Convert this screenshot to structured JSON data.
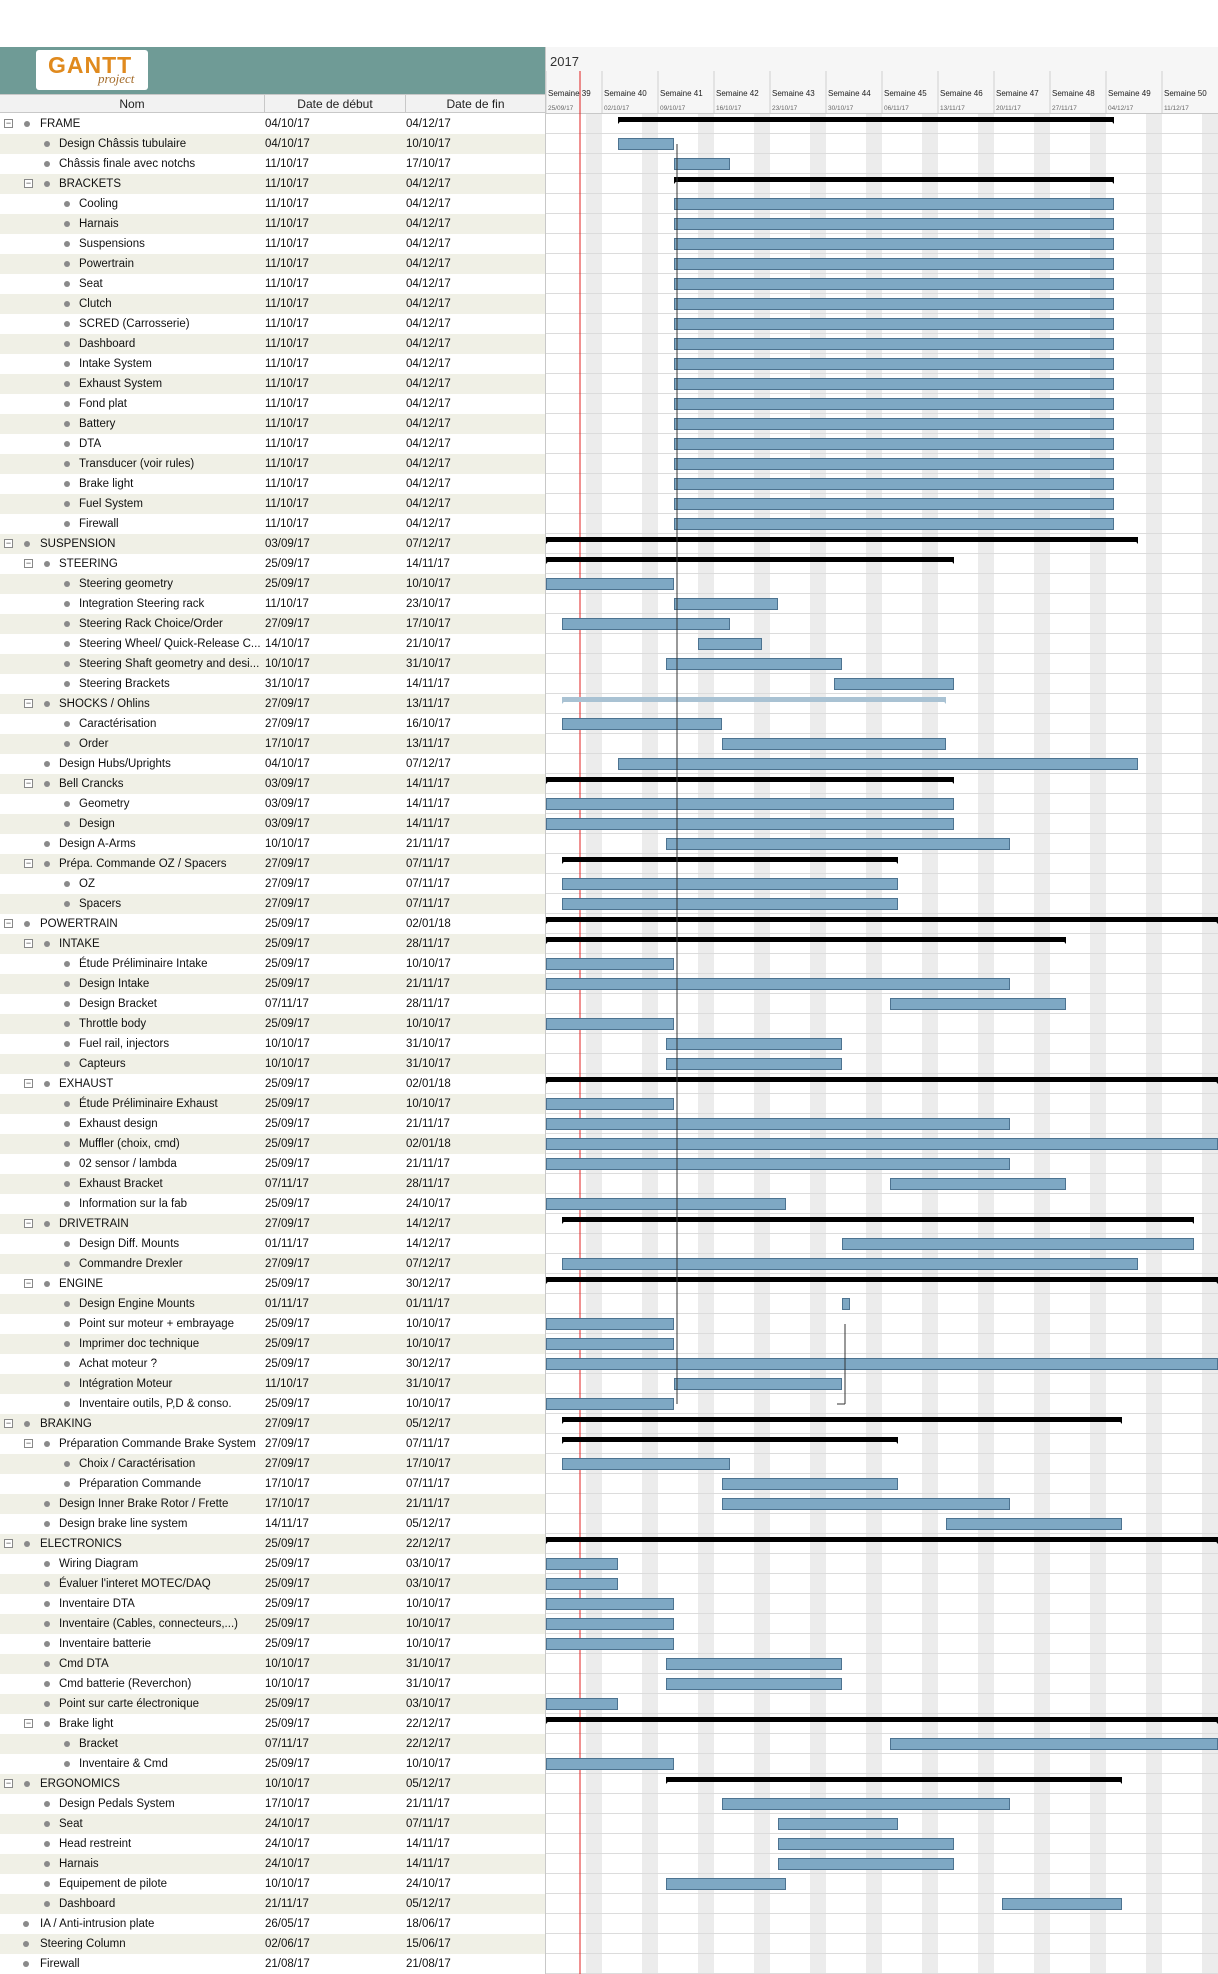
{
  "logo": {
    "gantt": "GANTT",
    "project": "project"
  },
  "columns": {
    "name": "Nom",
    "start": "Date de début",
    "end": "Date de fin"
  },
  "chart_header": {
    "year": "2017",
    "weeks": [
      {
        "label": "Semaine 39",
        "date": "25/09/17"
      },
      {
        "label": "Semaine 40",
        "date": "02/10/17"
      },
      {
        "label": "Semaine 41",
        "date": "09/10/17"
      },
      {
        "label": "Semaine 42",
        "date": "16/10/17"
      },
      {
        "label": "Semaine 43",
        "date": "23/10/17"
      },
      {
        "label": "Semaine 44",
        "date": "30/10/17"
      },
      {
        "label": "Semaine 45",
        "date": "06/11/17"
      },
      {
        "label": "Semaine 46",
        "date": "13/11/17"
      },
      {
        "label": "Semaine 47",
        "date": "20/11/17"
      },
      {
        "label": "Semaine 48",
        "date": "27/11/17"
      },
      {
        "label": "Semaine 49",
        "date": "04/12/17"
      },
      {
        "label": "Semaine 50",
        "date": "11/12/17"
      }
    ]
  },
  "colors": {
    "bar": "#7ea8c4",
    "bar_border": "#4d7390",
    "summary": "#000000",
    "today_line": "#e02020",
    "weekend": "#ececec"
  },
  "tasks": [
    {
      "name": "FRAME",
      "start": "04/10/17",
      "end": "04/12/17",
      "level": 0,
      "summary": true
    },
    {
      "name": "Design Châssis tubulaire",
      "start": "04/10/17",
      "end": "10/10/17",
      "level": 1
    },
    {
      "name": "Châssis finale avec notchs",
      "start": "11/10/17",
      "end": "17/10/17",
      "level": 1
    },
    {
      "name": "BRACKETS",
      "start": "11/10/17",
      "end": "04/12/17",
      "level": 1,
      "summary": true
    },
    {
      "name": "Cooling",
      "start": "11/10/17",
      "end": "04/12/17",
      "level": 2
    },
    {
      "name": "Harnais",
      "start": "11/10/17",
      "end": "04/12/17",
      "level": 2
    },
    {
      "name": "Suspensions",
      "start": "11/10/17",
      "end": "04/12/17",
      "level": 2
    },
    {
      "name": "Powertrain",
      "start": "11/10/17",
      "end": "04/12/17",
      "level": 2
    },
    {
      "name": "Seat",
      "start": "11/10/17",
      "end": "04/12/17",
      "level": 2
    },
    {
      "name": "Clutch",
      "start": "11/10/17",
      "end": "04/12/17",
      "level": 2
    },
    {
      "name": "SCRED (Carrosserie)",
      "start": "11/10/17",
      "end": "04/12/17",
      "level": 2
    },
    {
      "name": "Dashboard",
      "start": "11/10/17",
      "end": "04/12/17",
      "level": 2
    },
    {
      "name": "Intake System",
      "start": "11/10/17",
      "end": "04/12/17",
      "level": 2
    },
    {
      "name": "Exhaust System",
      "start": "11/10/17",
      "end": "04/12/17",
      "level": 2
    },
    {
      "name": "Fond plat",
      "start": "11/10/17",
      "end": "04/12/17",
      "level": 2
    },
    {
      "name": "Battery",
      "start": "11/10/17",
      "end": "04/12/17",
      "level": 2
    },
    {
      "name": "DTA",
      "start": "11/10/17",
      "end": "04/12/17",
      "level": 2
    },
    {
      "name": "Transducer (voir rules)",
      "start": "11/10/17",
      "end": "04/12/17",
      "level": 2
    },
    {
      "name": "Brake light",
      "start": "11/10/17",
      "end": "04/12/17",
      "level": 2
    },
    {
      "name": "Fuel System",
      "start": "11/10/17",
      "end": "04/12/17",
      "level": 2
    },
    {
      "name": "Firewall",
      "start": "11/10/17",
      "end": "04/12/17",
      "level": 2
    },
    {
      "name": "SUSPENSION",
      "start": "03/09/17",
      "end": "07/12/17",
      "level": 0,
      "summary": true
    },
    {
      "name": "STEERING",
      "start": "25/09/17",
      "end": "14/11/17",
      "level": 1,
      "summary": true
    },
    {
      "name": "Steering geometry",
      "start": "25/09/17",
      "end": "10/10/17",
      "level": 2
    },
    {
      "name": "Integration Steering rack",
      "start": "11/10/17",
      "end": "23/10/17",
      "level": 2
    },
    {
      "name": "Steering Rack  Choice/Order",
      "start": "27/09/17",
      "end": "17/10/17",
      "level": 2
    },
    {
      "name": "Steering Wheel/ Quick-Release C...",
      "start": "14/10/17",
      "end": "21/10/17",
      "level": 2
    },
    {
      "name": "Steering Shaft geometry and desi...",
      "start": "10/10/17",
      "end": "31/10/17",
      "level": 2
    },
    {
      "name": "Steering Brackets",
      "start": "31/10/17",
      "end": "14/11/17",
      "level": 2
    },
    {
      "name": "SHOCKS / Ohlins",
      "start": "27/09/17",
      "end": "13/11/17",
      "level": 1,
      "summary": true,
      "light": true
    },
    {
      "name": "Caractérisation",
      "start": "27/09/17",
      "end": "16/10/17",
      "level": 2
    },
    {
      "name": "Order",
      "start": "17/10/17",
      "end": "13/11/17",
      "level": 2
    },
    {
      "name": "Design Hubs/Uprights",
      "start": "04/10/17",
      "end": "07/12/17",
      "level": 1
    },
    {
      "name": "Bell Crancks",
      "start": "03/09/17",
      "end": "14/11/17",
      "level": 1,
      "summary": true
    },
    {
      "name": "Geometry",
      "start": "03/09/17",
      "end": "14/11/17",
      "level": 2
    },
    {
      "name": "Design",
      "start": "03/09/17",
      "end": "14/11/17",
      "level": 2
    },
    {
      "name": "Design A-Arms",
      "start": "10/10/17",
      "end": "21/11/17",
      "level": 1
    },
    {
      "name": "Prépa. Commande OZ / Spacers",
      "start": "27/09/17",
      "end": "07/11/17",
      "level": 1,
      "summary": true
    },
    {
      "name": "OZ",
      "start": "27/09/17",
      "end": "07/11/17",
      "level": 2
    },
    {
      "name": "Spacers",
      "start": "27/09/17",
      "end": "07/11/17",
      "level": 2
    },
    {
      "name": "POWERTRAIN",
      "start": "25/09/17",
      "end": "02/01/18",
      "level": 0,
      "summary": true
    },
    {
      "name": "INTAKE",
      "start": "25/09/17",
      "end": "28/11/17",
      "level": 1,
      "summary": true
    },
    {
      "name": "Étude Préliminaire Intake",
      "start": "25/09/17",
      "end": "10/10/17",
      "level": 2
    },
    {
      "name": "Design Intake",
      "start": "25/09/17",
      "end": "21/11/17",
      "level": 2
    },
    {
      "name": "Design Bracket",
      "start": "07/11/17",
      "end": "28/11/17",
      "level": 2
    },
    {
      "name": "Throttle body",
      "start": "25/09/17",
      "end": "10/10/17",
      "level": 2
    },
    {
      "name": "Fuel rail, injectors",
      "start": "10/10/17",
      "end": "31/10/17",
      "level": 2
    },
    {
      "name": "Capteurs",
      "start": "10/10/17",
      "end": "31/10/17",
      "level": 2
    },
    {
      "name": "EXHAUST",
      "start": "25/09/17",
      "end": "02/01/18",
      "level": 1,
      "summary": true
    },
    {
      "name": "Étude Préliminaire Exhaust",
      "start": "25/09/17",
      "end": "10/10/17",
      "level": 2
    },
    {
      "name": "Exhaust design",
      "start": "25/09/17",
      "end": "21/11/17",
      "level": 2
    },
    {
      "name": "Muffler (choix, cmd)",
      "start": "25/09/17",
      "end": "02/01/18",
      "level": 2
    },
    {
      "name": "02 sensor / lambda",
      "start": "25/09/17",
      "end": "21/11/17",
      "level": 2
    },
    {
      "name": "Exhaust Bracket",
      "start": "07/11/17",
      "end": "28/11/17",
      "level": 2
    },
    {
      "name": "Information sur la fab",
      "start": "25/09/17",
      "end": "24/10/17",
      "level": 2
    },
    {
      "name": "DRIVETRAIN",
      "start": "27/09/17",
      "end": "14/12/17",
      "level": 1,
      "summary": true
    },
    {
      "name": "Design Diff. Mounts",
      "start": "01/11/17",
      "end": "14/12/17",
      "level": 2
    },
    {
      "name": "Commandre Drexler",
      "start": "27/09/17",
      "end": "07/12/17",
      "level": 2
    },
    {
      "name": "ENGINE",
      "start": "25/09/17",
      "end": "30/12/17",
      "level": 1,
      "summary": true
    },
    {
      "name": "Design Engine Mounts",
      "start": "01/11/17",
      "end": "01/11/17",
      "level": 2
    },
    {
      "name": "Point sur moteur + embrayage",
      "start": "25/09/17",
      "end": "10/10/17",
      "level": 2
    },
    {
      "name": "Imprimer doc technique",
      "start": "25/09/17",
      "end": "10/10/17",
      "level": 2
    },
    {
      "name": "Achat moteur ?",
      "start": "25/09/17",
      "end": "30/12/17",
      "level": 2
    },
    {
      "name": "Intégration Moteur",
      "start": "11/10/17",
      "end": "31/10/17",
      "level": 2
    },
    {
      "name": "Inventaire outils, P,D & conso.",
      "start": "25/09/17",
      "end": "10/10/17",
      "level": 2
    },
    {
      "name": "BRAKING",
      "start": "27/09/17",
      "end": "05/12/17",
      "level": 0,
      "summary": true
    },
    {
      "name": "Préparation Commande Brake System",
      "start": "27/09/17",
      "end": "07/11/17",
      "level": 1,
      "summary": true
    },
    {
      "name": "Choix / Caractérisation",
      "start": "27/09/17",
      "end": "17/10/17",
      "level": 2
    },
    {
      "name": "Préparation Commande",
      "start": "17/10/17",
      "end": "07/11/17",
      "level": 2
    },
    {
      "name": "Design Inner Brake Rotor / Frette",
      "start": "17/10/17",
      "end": "21/11/17",
      "level": 1
    },
    {
      "name": "Design brake line system",
      "start": "14/11/17",
      "end": "05/12/17",
      "level": 1
    },
    {
      "name": "ELECTRONICS",
      "start": "25/09/17",
      "end": "22/12/17",
      "level": 0,
      "summary": true
    },
    {
      "name": "Wiring Diagram",
      "start": "25/09/17",
      "end": "03/10/17",
      "level": 1
    },
    {
      "name": "Évaluer l'interet MOTEC/DAQ",
      "start": "25/09/17",
      "end": "03/10/17",
      "level": 1
    },
    {
      "name": "Inventaire DTA",
      "start": "25/09/17",
      "end": "10/10/17",
      "level": 1
    },
    {
      "name": "Inventaire (Cables, connecteurs,...)",
      "start": "25/09/17",
      "end": "10/10/17",
      "level": 1
    },
    {
      "name": "Inventaire batterie",
      "start": "25/09/17",
      "end": "10/10/17",
      "level": 1
    },
    {
      "name": "Cmd DTA",
      "start": "10/10/17",
      "end": "31/10/17",
      "level": 1
    },
    {
      "name": "Cmd batterie (Reverchon)",
      "start": "10/10/17",
      "end": "31/10/17",
      "level": 1
    },
    {
      "name": "Point sur carte électronique",
      "start": "25/09/17",
      "end": "03/10/17",
      "level": 1
    },
    {
      "name": "Brake light",
      "start": "25/09/17",
      "end": "22/12/17",
      "level": 1,
      "summary": true
    },
    {
      "name": "Bracket",
      "start": "07/11/17",
      "end": "22/12/17",
      "level": 2
    },
    {
      "name": "Inventaire & Cmd",
      "start": "25/09/17",
      "end": "10/10/17",
      "level": 2
    },
    {
      "name": "ERGONOMICS",
      "start": "10/10/17",
      "end": "05/12/17",
      "level": 0,
      "summary": true
    },
    {
      "name": "Design Pedals System",
      "start": "17/10/17",
      "end": "21/11/17",
      "level": 1
    },
    {
      "name": "Seat",
      "start": "24/10/17",
      "end": "07/11/17",
      "level": 1
    },
    {
      "name": "Head restreint",
      "start": "24/10/17",
      "end": "14/11/17",
      "level": 1
    },
    {
      "name": "Harnais",
      "start": "24/10/17",
      "end": "14/11/17",
      "level": 1
    },
    {
      "name": "Equipement de pilote",
      "start": "10/10/17",
      "end": "24/10/17",
      "level": 1
    },
    {
      "name": "Dashboard",
      "start": "21/11/17",
      "end": "05/12/17",
      "level": 1
    },
    {
      "name": "IA / Anti-intrusion plate",
      "start": "26/05/17",
      "end": "18/06/17",
      "level": 0,
      "leaf": true
    },
    {
      "name": "Steering Column",
      "start": "02/06/17",
      "end": "15/06/17",
      "level": 0,
      "leaf": true
    },
    {
      "name": "Firewall",
      "start": "21/08/17",
      "end": "21/08/17",
      "level": 0,
      "leaf": true
    }
  ]
}
